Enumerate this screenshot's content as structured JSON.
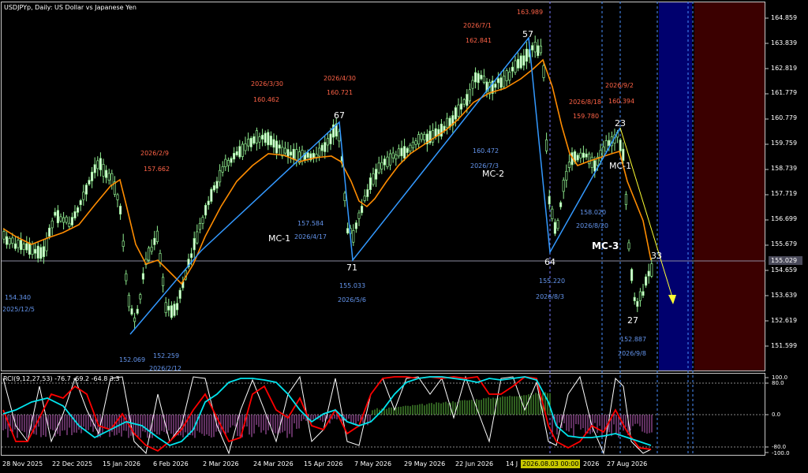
{
  "chart_title": "USDJPYp, Daily:  US Dollar vs Japanese Yen",
  "colors": {
    "background": "#000000",
    "candles": "#90ee90",
    "moving_average": "#ff8c00",
    "wave_line": "#3399ff",
    "high_label": "#ff6347",
    "low_label": "#6495ed",
    "future_blue": "#00006e",
    "future_red": "#3b0000",
    "rci_short": "#ffffff",
    "rci_mid": "#ff0000",
    "rci_long": "#00e5ee"
  },
  "price_axis": [
    "164.859",
    "163.839",
    "162.819",
    "161.779",
    "160.779",
    "159.759",
    "158.739",
    "157.719",
    "156.699",
    "155.679",
    "154.659",
    "153.639",
    "152.619",
    "151.599"
  ],
  "current_price": "155.029",
  "waves": {
    "w67": "67",
    "w71": "71",
    "w57": "57",
    "w64": "64",
    "w23": "23",
    "w27": "27",
    "w33": "33"
  },
  "mc_labels": {
    "mc1": "MC-1",
    "mc2": "MC-2",
    "mc3": "MC-3",
    "mc1b": "MC-1"
  },
  "highs": [
    {
      "date": "2026/3/30",
      "price": "160.462"
    },
    {
      "date": "2026/4/30",
      "price": "160.721"
    },
    {
      "date": "2026/2/9",
      "price": "157.662"
    },
    {
      "date": "2026/7/1",
      "price": "162.841",
      "extra": "163.989"
    },
    {
      "date": "2026/8/18",
      "price": "159.780"
    },
    {
      "date": "2026/9/2",
      "price": "160.394"
    }
  ],
  "lows": [
    {
      "date": "2025/12/5",
      "price": "154.340"
    },
    {
      "date": "2026/2/12",
      "price": "152.259"
    },
    {
      "price": "152.069"
    },
    {
      "date": "2026/4/17",
      "price": "157.584"
    },
    {
      "date": "2026/5/6",
      "price": "155.033"
    },
    {
      "date": "2026/7/3",
      "price": "160.472"
    },
    {
      "date": "2026/8/20",
      "price": "158.020"
    },
    {
      "date": "2026/8/3",
      "price": "155.220"
    },
    {
      "date": "2026/9/8",
      "price": "152.887"
    }
  ],
  "rci": {
    "title": "RCI(9,12,27,53) -76.7 -69.2 -64.8 3.3",
    "levels": [
      "100.0",
      "80.0",
      "0.0",
      "-80.0",
      "-100.0"
    ]
  },
  "time_axis": [
    "28 Nov 2025",
    "22 Dec 2025",
    "15 Jan 2026",
    "6 Feb 2026",
    "2 Mar 2026",
    "24 Mar 2026",
    "15 Apr 2026",
    "7 May 2026",
    "29 May 2026",
    "22 Jun 2026",
    "14 J",
    "27 Aug 2026"
  ],
  "time_axis_partial": "2026",
  "crosshair_date": "2026.08.03 00:00"
}
